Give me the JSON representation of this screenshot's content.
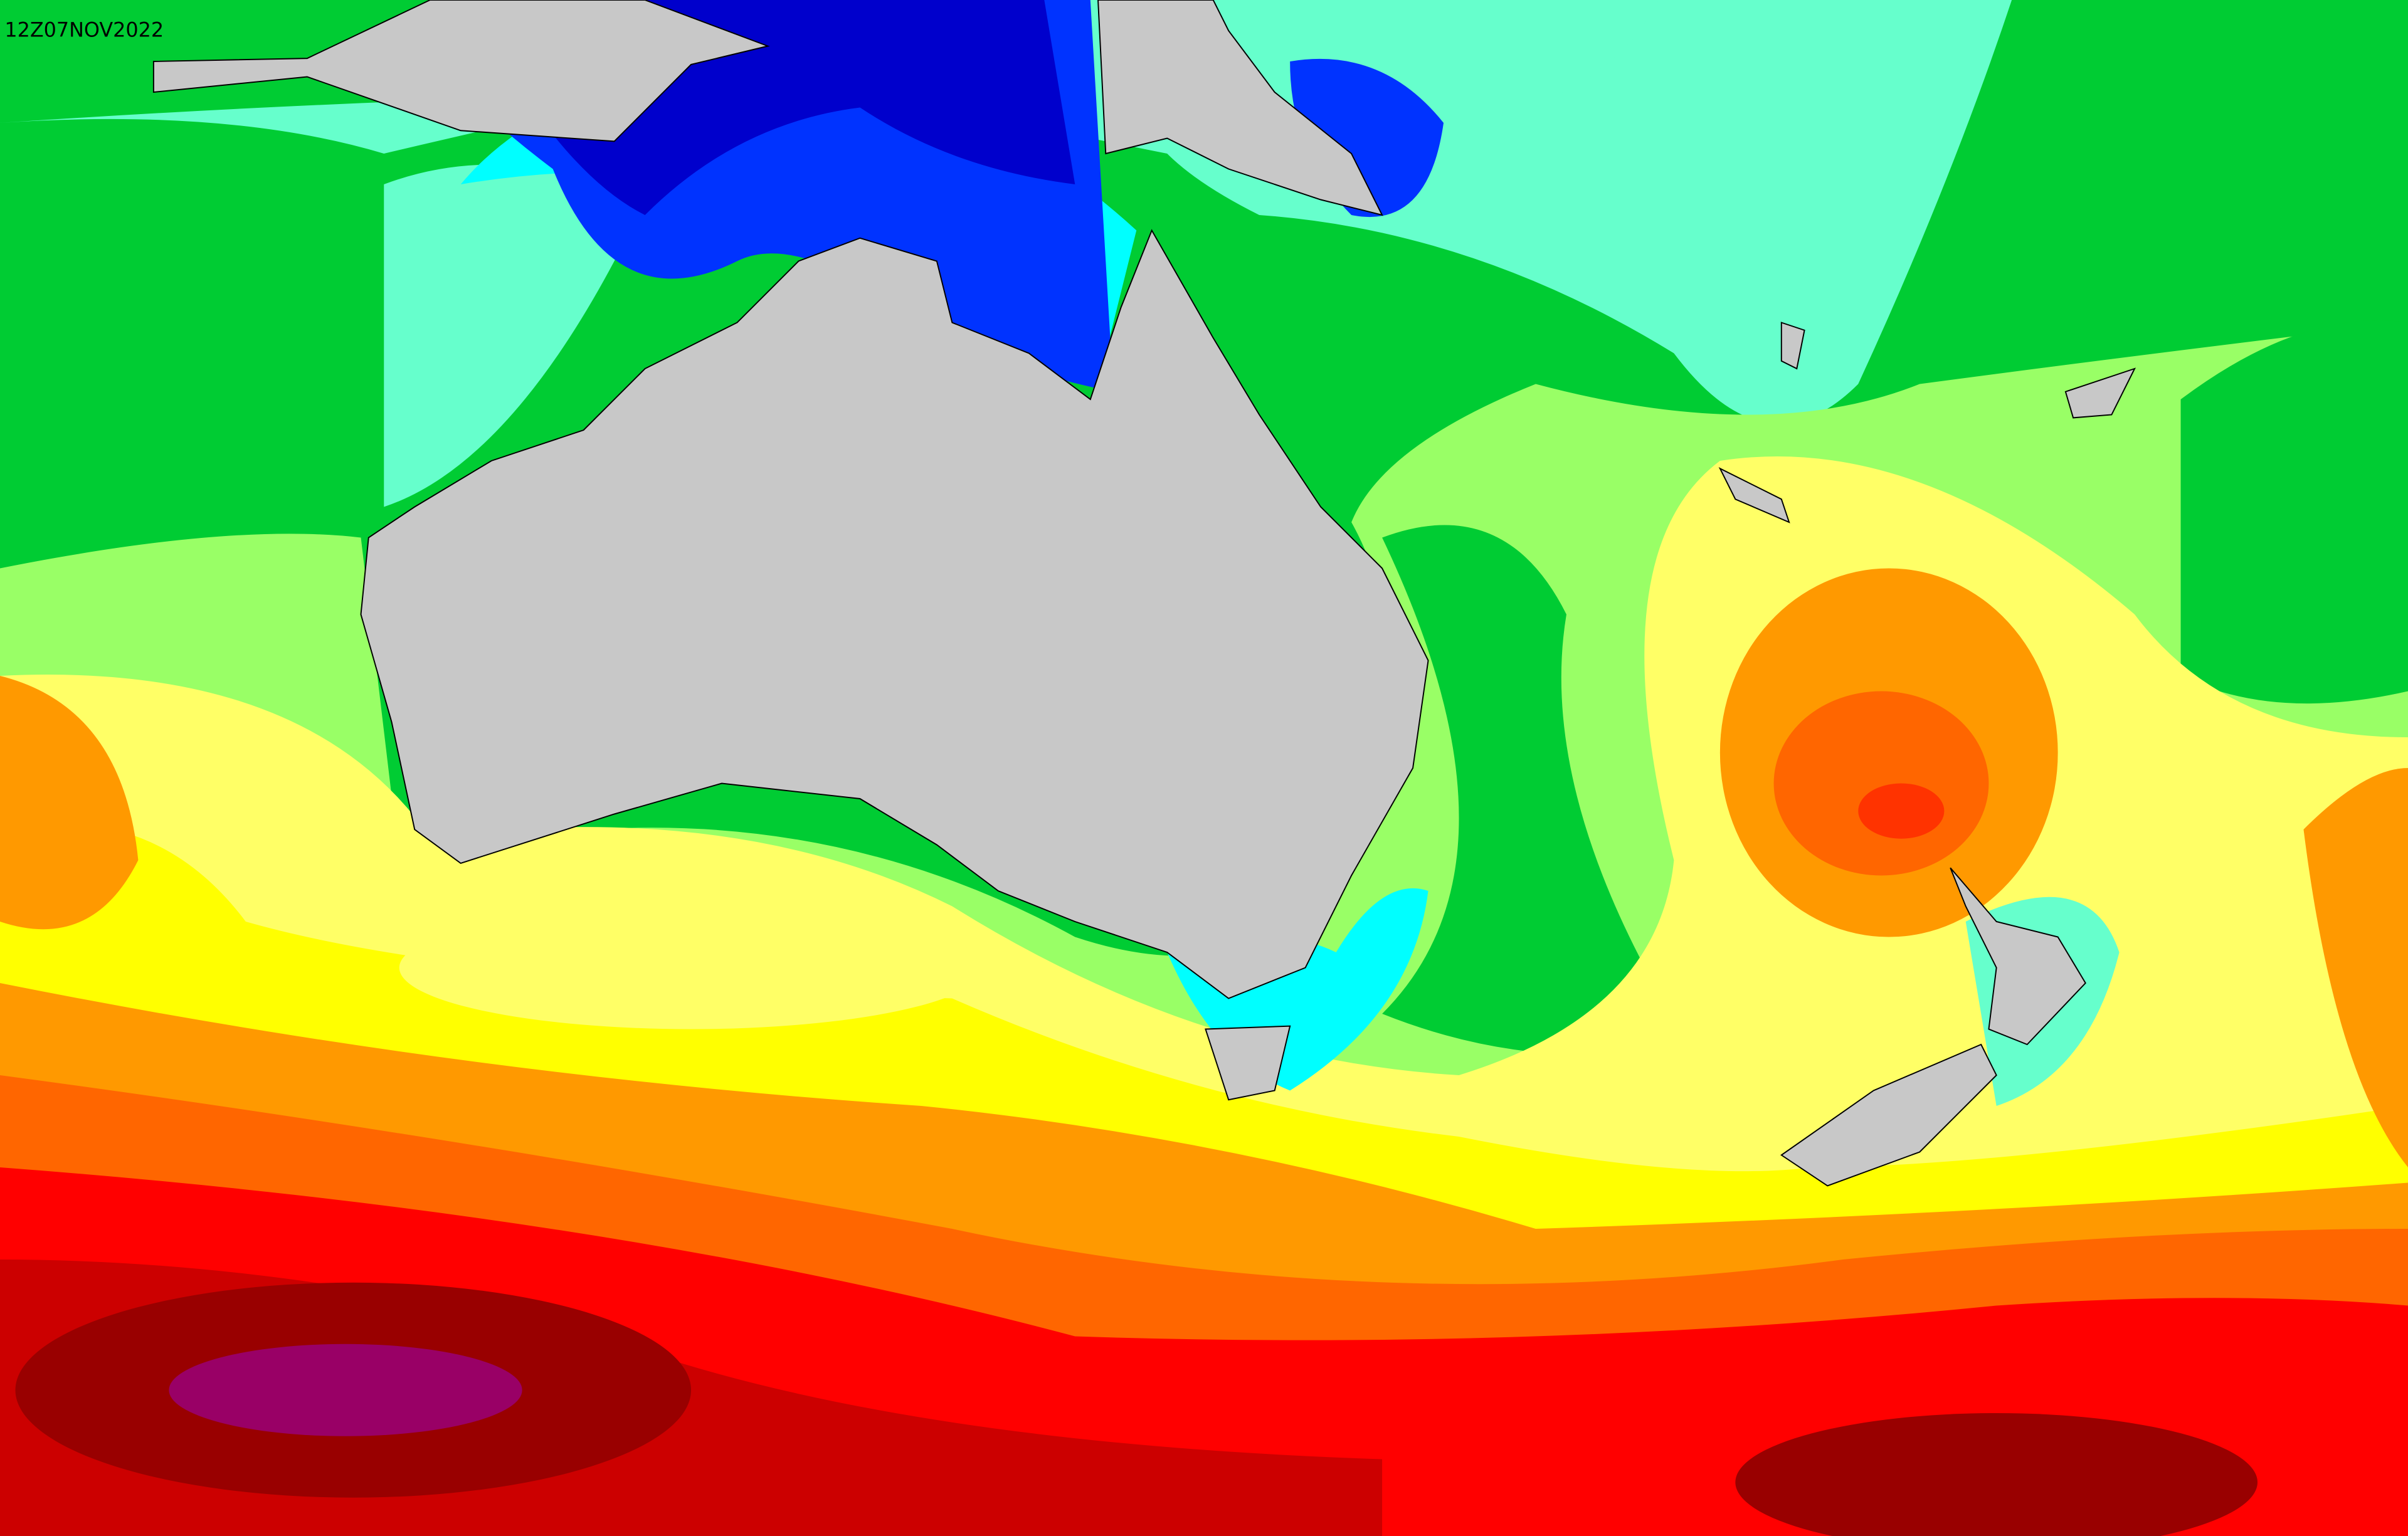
{
  "timestamp": "12Z07NOV2022"
}
